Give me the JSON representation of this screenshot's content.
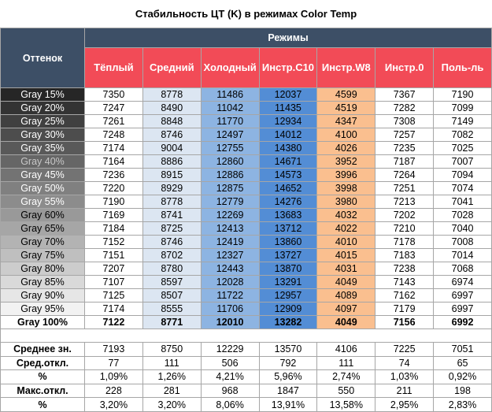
{
  "title": "Стабильность ЦТ (K) в режимах Color Temp",
  "table": {
    "row_header": "Оттенок",
    "group_header": "Режимы",
    "columns": [
      "Тёплый",
      "Средний",
      "Холодный",
      "Инстр.C10",
      "Инстр.W8",
      "Инстр.0",
      "Поль-ль"
    ],
    "rows": [
      [
        "Gray 15%",
        "7350",
        "8778",
        "11486",
        "12037",
        "4599",
        "7367",
        "7190"
      ],
      [
        "Gray 20%",
        "7247",
        "8490",
        "11042",
        "11435",
        "4519",
        "7282",
        "7099"
      ],
      [
        "Gray 25%",
        "7261",
        "8848",
        "11770",
        "12934",
        "4347",
        "7308",
        "7149"
      ],
      [
        "Gray 30%",
        "7248",
        "8746",
        "12497",
        "14012",
        "4100",
        "7257",
        "7082"
      ],
      [
        "Gray 35%",
        "7174",
        "9004",
        "12755",
        "14380",
        "4026",
        "7235",
        "7025"
      ],
      [
        "Gray 40%",
        "7164",
        "8886",
        "12860",
        "14671",
        "3952",
        "7187",
        "7007"
      ],
      [
        "Gray 45%",
        "7236",
        "8915",
        "12886",
        "14573",
        "3996",
        "7264",
        "7094"
      ],
      [
        "Gray 50%",
        "7220",
        "8929",
        "12875",
        "14652",
        "3998",
        "7251",
        "7074"
      ],
      [
        "Gray 55%",
        "7190",
        "8778",
        "12779",
        "14276",
        "3980",
        "7213",
        "7041"
      ],
      [
        "Gray 60%",
        "7169",
        "8741",
        "12269",
        "13683",
        "4032",
        "7202",
        "7028"
      ],
      [
        "Gray 65%",
        "7184",
        "8725",
        "12413",
        "13712",
        "4022",
        "7210",
        "7040"
      ],
      [
        "Gray 70%",
        "7152",
        "8746",
        "12419",
        "13860",
        "4010",
        "7178",
        "7008"
      ],
      [
        "Gray 75%",
        "7151",
        "8702",
        "12327",
        "13727",
        "4015",
        "7183",
        "7014"
      ],
      [
        "Gray 80%",
        "7207",
        "8780",
        "12443",
        "13870",
        "4031",
        "7238",
        "7068"
      ],
      [
        "Gray 85%",
        "7107",
        "8597",
        "12028",
        "13291",
        "4049",
        "7143",
        "6974"
      ],
      [
        "Gray 90%",
        "7125",
        "8507",
        "11722",
        "12957",
        "4089",
        "7162",
        "6997"
      ],
      [
        "Gray 95%",
        "7174",
        "8555",
        "11706",
        "12909",
        "4097",
        "7179",
        "6997"
      ],
      [
        "Gray 100%",
        "7122",
        "8771",
        "12010",
        "13282",
        "4049",
        "7156",
        "6992"
      ]
    ],
    "summary": [
      [
        "Среднее зн.",
        "7193",
        "8750",
        "12229",
        "13570",
        "4106",
        "7225",
        "7051"
      ],
      [
        "Сред.откл.",
        "77",
        "111",
        "506",
        "792",
        "111",
        "74",
        "65"
      ],
      [
        "%",
        "1,09%",
        "1,26%",
        "4,21%",
        "5,96%",
        "2,74%",
        "1,03%",
        "0,92%"
      ],
      [
        "Макс.откл.",
        "228",
        "281",
        "968",
        "1847",
        "550",
        "211",
        "198"
      ],
      [
        "%",
        "3,20%",
        "3,20%",
        "8,06%",
        "13,91%",
        "13,58%",
        "2,95%",
        "2,83%"
      ]
    ]
  }
}
